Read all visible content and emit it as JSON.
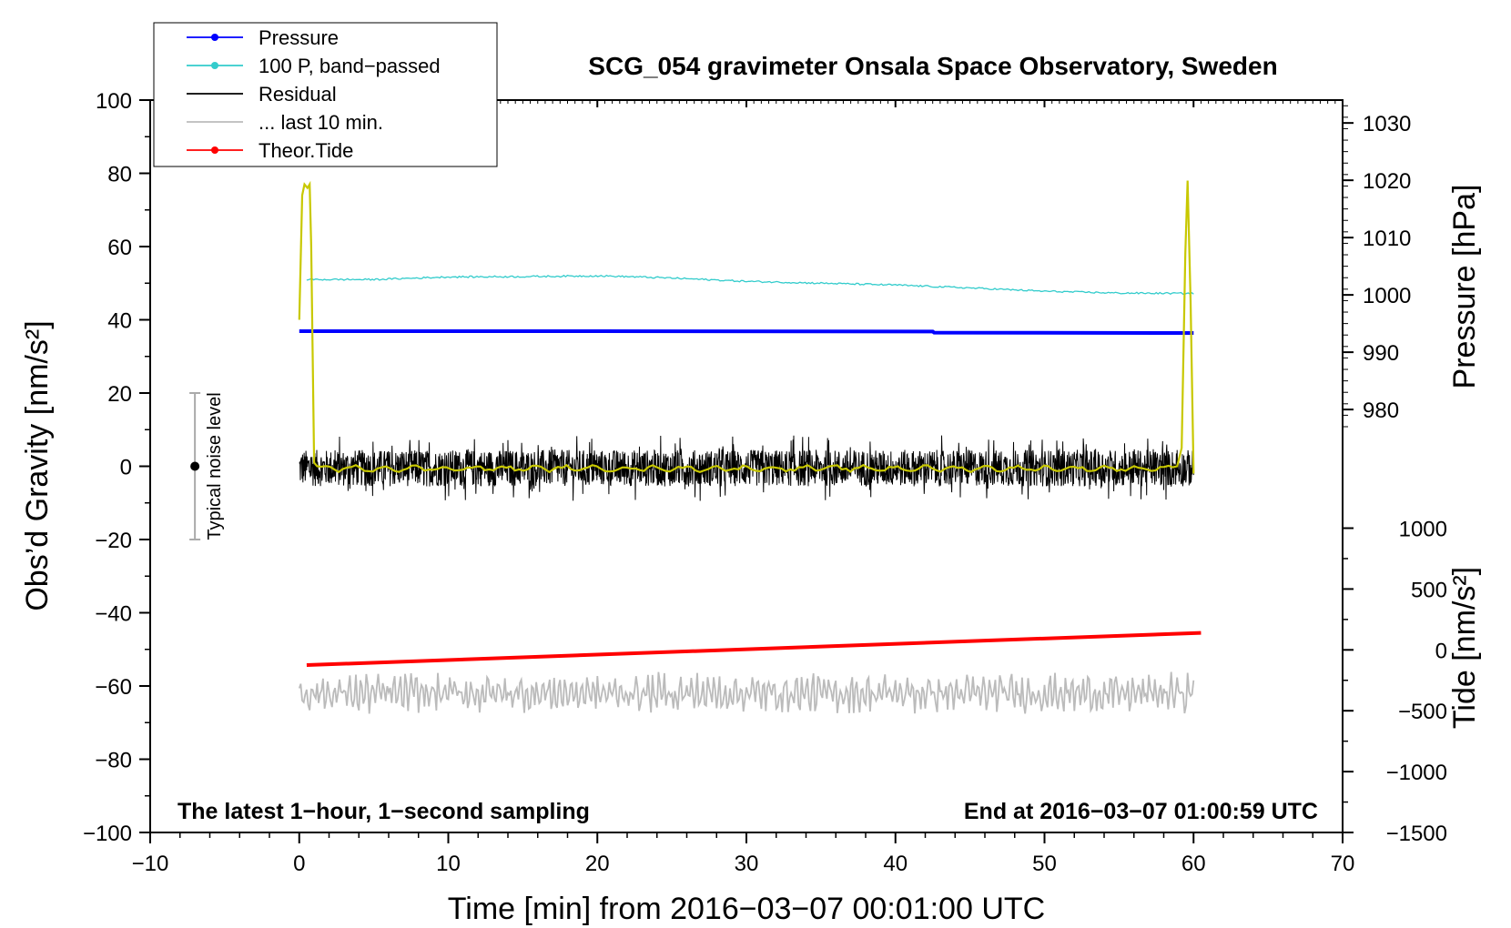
{
  "chart_data": {
    "type": "line",
    "title": "SCG_054 gravimeter Onsala Space Observatory, Sweden",
    "xlabel": "Time [min] from 2016−03−07 00:01:00 UTC",
    "ylabel_left": "Obs’d Gravity [nm/s²]",
    "ylabel_right_top": "Pressure [hPa]",
    "ylabel_right_bottom": "Tide [nm/s²]",
    "xlim": [
      -10,
      70
    ],
    "ylim": [
      -100,
      100
    ],
    "x_ticks": [
      -10,
      0,
      10,
      20,
      30,
      40,
      50,
      60,
      70
    ],
    "x_tick_labels": [
      "−10",
      "0",
      "10",
      "20",
      "30",
      "40",
      "50",
      "60",
      "70"
    ],
    "y_ticks": [
      100,
      80,
      60,
      40,
      20,
      0,
      -20,
      -40,
      -60,
      -80,
      -100
    ],
    "y_tick_labels": [
      "100",
      "80",
      "60",
      "40",
      "20",
      "0",
      "−20",
      "−40",
      "−60",
      "−80",
      "−100"
    ],
    "pressure_axis": {
      "ticks": [
        1030,
        1020,
        1010,
        1000,
        990,
        980
      ],
      "tick_labels": [
        "1030",
        "1020",
        "1010",
        "1000",
        "990",
        "980"
      ],
      "left_value_at_pressure": [
        [
          1000,
          46.8
        ],
        [
          980,
          15.5
        ]
      ]
    },
    "tide_axis": {
      "ticks": [
        1000,
        500,
        0,
        -500,
        -1000,
        -1500
      ],
      "tick_labels": [
        "1000",
        "500",
        "0",
        "−500",
        "−1000",
        "−1500"
      ],
      "left_value_at_tide": [
        [
          1000,
          -16.9
        ],
        [
          -1500,
          -100
        ]
      ]
    },
    "legend": [
      {
        "label": "Pressure",
        "color": "#0000ff",
        "marker": true
      },
      {
        "label": "100 P, band−passed",
        "color": "#33cccc",
        "marker": true
      },
      {
        "label": "Residual",
        "color": "#000000",
        "marker": false
      },
      {
        "label": "... last 10 min.",
        "color": "#bbbbbb",
        "marker": false
      },
      {
        "label": "Theor.Tide",
        "color": "#ff0000",
        "marker": true
      }
    ],
    "annotations": {
      "left_note": "The latest 1−hour, 1−second sampling",
      "right_note": "End at 2016−03−07 01:00:59 UTC",
      "noise_label": "Typical noise level",
      "noise_bar": {
        "x": -7,
        "center": 0,
        "range": [
          -20,
          20
        ]
      }
    },
    "series": [
      {
        "name": "Pressure",
        "color": "#0000ff",
        "x": [
          0,
          20,
          42.5,
          42.6,
          60
        ],
        "values": [
          36.9,
          36.9,
          36.8,
          36.5,
          36.4
        ]
      },
      {
        "name": "100 P, band−passed",
        "color": "#33cccc",
        "x": [
          0.5,
          5,
          10,
          15,
          20,
          22,
          25,
          30,
          35,
          40,
          45,
          50,
          55,
          60
        ],
        "values": [
          51,
          51,
          51.7,
          51.8,
          52,
          51.8,
          51.4,
          50.5,
          50,
          49.5,
          48.7,
          47.8,
          47.3,
          47.2
        ]
      },
      {
        "name": "Residual",
        "color": "#000000",
        "x": [
          0,
          60
        ],
        "values": [
          0,
          0
        ],
        "noise_amplitude": 5
      },
      {
        "name": "Spike trace",
        "color": "#c8c800",
        "x": [
          0,
          0.2,
          0.35,
          0.55,
          0.7,
          0.8,
          1.0,
          1.2,
          58.9,
          59.2,
          59.45,
          59.6,
          59.8,
          60.0
        ],
        "values": [
          40,
          74,
          77,
          76,
          77,
          60,
          1,
          0,
          0,
          5,
          58,
          78,
          45,
          -2
        ]
      },
      {
        "name": "... last 10 min.",
        "color": "#bbbbbb",
        "x": [
          0,
          60
        ],
        "values": [
          -62,
          -62
        ],
        "oscillation_amplitude": 5
      },
      {
        "name": "Theor.Tide",
        "color": "#ff0000",
        "x": [
          0.5,
          60.5
        ],
        "tide_values": [
          -125,
          140
        ]
      }
    ]
  }
}
